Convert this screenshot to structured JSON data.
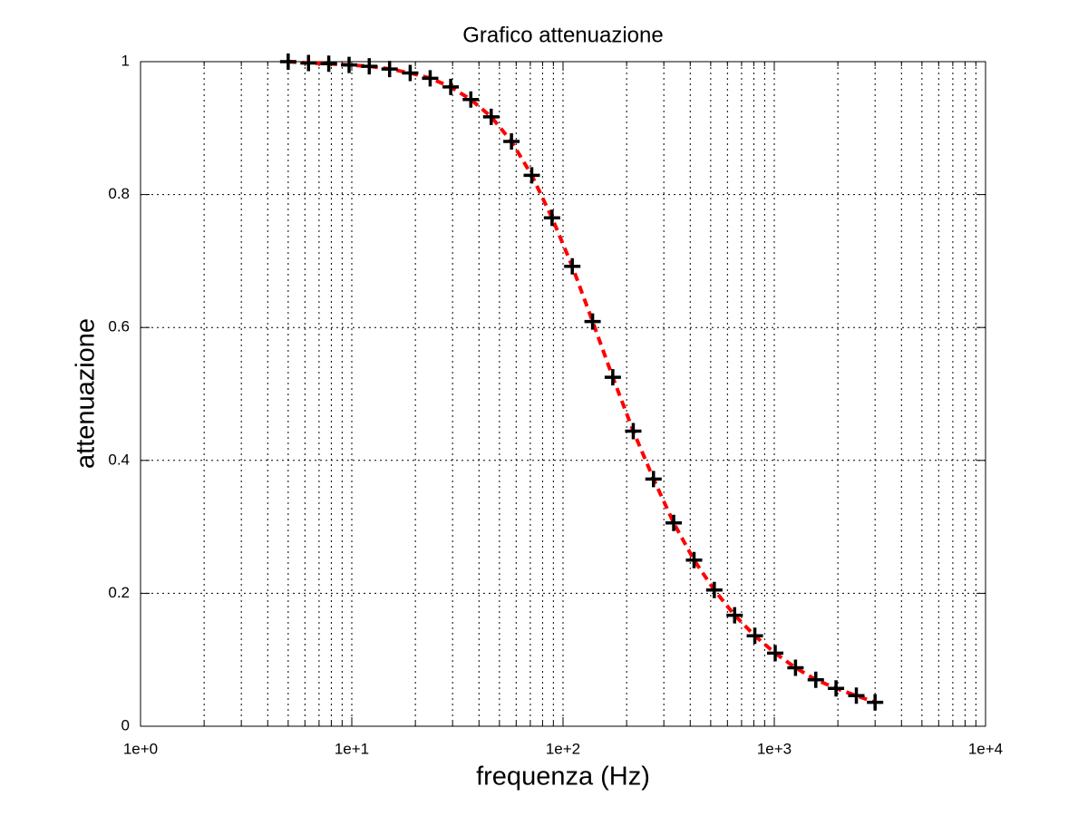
{
  "chart_data": {
    "type": "scatter",
    "title": "Grafico attenuazione",
    "xlabel": "frequenza (Hz)",
    "ylabel": "attenuazione",
    "xscale": "log",
    "grid": true,
    "xlim": [
      1,
      10000
    ],
    "xticks": [
      {
        "value": 1,
        "label": "1e+0"
      },
      {
        "value": 10,
        "label": "1e+1"
      },
      {
        "value": 100,
        "label": "1e+2"
      },
      {
        "value": 1000,
        "label": "1e+3"
      },
      {
        "value": 10000,
        "label": "1e+4"
      }
    ],
    "ylim": [
      0,
      1
    ],
    "yticks": [
      0,
      0.2,
      0.4,
      0.6,
      0.8,
      1
    ],
    "x": [
      5,
      6.24,
      7.78,
      9.71,
      12.1,
      15.1,
      18.9,
      23.5,
      29.4,
      36.6,
      45.7,
      57.0,
      71.1,
      88.7,
      110.6,
      138,
      172,
      215,
      268,
      334,
      417,
      520,
      649,
      809,
      1010,
      1260,
      1572,
      1960,
      2446,
      3000
    ],
    "series": [
      {
        "color": "#ff0000",
        "style": "dashed",
        "values": [
          1.0,
          0.998,
          0.997,
          0.995,
          0.993,
          0.989,
          0.983,
          0.975,
          0.962,
          0.943,
          0.917,
          0.88,
          0.829,
          0.765,
          0.692,
          0.609,
          0.525,
          0.444,
          0.372,
          0.306,
          0.25,
          0.205,
          0.167,
          0.136,
          0.11,
          0.088,
          0.07,
          0.057,
          0.046,
          0.036
        ]
      },
      {
        "color": "#000000",
        "style": "plus",
        "values": [
          1.0,
          0.998,
          0.997,
          0.995,
          0.993,
          0.989,
          0.983,
          0.975,
          0.962,
          0.943,
          0.917,
          0.88,
          0.829,
          0.765,
          0.692,
          0.609,
          0.525,
          0.444,
          0.372,
          0.306,
          0.25,
          0.205,
          0.167,
          0.136,
          0.11,
          0.088,
          0.07,
          0.057,
          0.046,
          0.036
        ]
      }
    ]
  }
}
